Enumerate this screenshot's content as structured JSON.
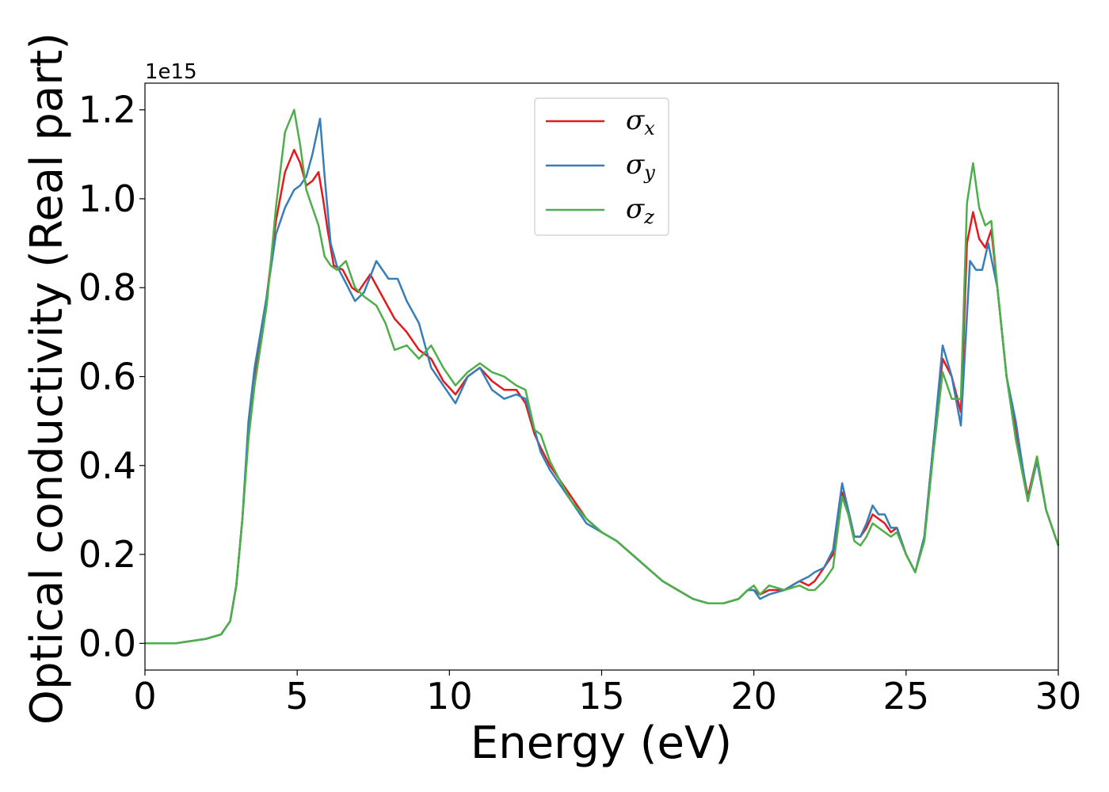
{
  "chart_data": {
    "type": "line",
    "xlabel": "Energy (eV)",
    "ylabel": "Optical conductivity (Real part)",
    "y_offset_text": "1e15",
    "xlim": [
      0,
      30
    ],
    "ylim": [
      -0.06,
      1.26
    ],
    "x_ticks": [
      0,
      5,
      10,
      15,
      20,
      25,
      30
    ],
    "x_tick_labels": [
      "0",
      "5",
      "10",
      "15",
      "20",
      "25",
      "30"
    ],
    "y_ticks": [
      0.0,
      0.2,
      0.4,
      0.6,
      0.8,
      1.0,
      1.2
    ],
    "y_tick_labels": [
      "0.0",
      "0.2",
      "0.4",
      "0.6",
      "0.8",
      "1.0",
      "1.2"
    ],
    "grid": false,
    "legend_position": "top-center",
    "series": [
      {
        "name": "σ",
        "subscript": "x",
        "color": "#e41a1c",
        "x": [
          0,
          1,
          2,
          2.5,
          2.8,
          3.0,
          3.2,
          3.4,
          3.6,
          4.0,
          4.3,
          4.6,
          4.9,
          5.1,
          5.3,
          5.5,
          5.7,
          5.85,
          6.0,
          6.2,
          6.5,
          6.8,
          7.0,
          7.4,
          7.8,
          8.2,
          8.6,
          9.0,
          9.4,
          9.8,
          10.2,
          10.6,
          11.0,
          11.4,
          11.8,
          12.2,
          12.5,
          12.8,
          13.0,
          13.3,
          13.6,
          14.0,
          14.5,
          15.0,
          15.5,
          16.0,
          16.5,
          17.0,
          17.5,
          18.0,
          18.5,
          19.0,
          19.5,
          19.8,
          20.0,
          20.2,
          20.5,
          21.0,
          21.5,
          21.8,
          22.0,
          22.3,
          22.6,
          22.9,
          23.1,
          23.3,
          23.5,
          23.7,
          23.9,
          24.1,
          24.3,
          24.5,
          24.7,
          25.0,
          25.3,
          25.6,
          25.9,
          26.2,
          26.5,
          26.8,
          27.0,
          27.2,
          27.4,
          27.6,
          27.8,
          28.0,
          28.3,
          28.6,
          29.0,
          29.3,
          29.6,
          30.0
        ],
        "y": [
          0.0,
          0.0,
          0.01,
          0.02,
          0.05,
          0.13,
          0.28,
          0.48,
          0.6,
          0.78,
          0.95,
          1.06,
          1.11,
          1.08,
          1.03,
          1.04,
          1.06,
          1.0,
          0.93,
          0.85,
          0.84,
          0.8,
          0.79,
          0.83,
          0.78,
          0.73,
          0.7,
          0.66,
          0.64,
          0.59,
          0.56,
          0.6,
          0.62,
          0.59,
          0.57,
          0.57,
          0.54,
          0.47,
          0.44,
          0.4,
          0.37,
          0.33,
          0.28,
          0.25,
          0.23,
          0.2,
          0.17,
          0.14,
          0.12,
          0.1,
          0.09,
          0.09,
          0.1,
          0.12,
          0.12,
          0.11,
          0.12,
          0.12,
          0.14,
          0.13,
          0.14,
          0.17,
          0.2,
          0.34,
          0.3,
          0.24,
          0.24,
          0.26,
          0.29,
          0.28,
          0.27,
          0.25,
          0.26,
          0.2,
          0.16,
          0.24,
          0.45,
          0.64,
          0.6,
          0.52,
          0.9,
          0.97,
          0.91,
          0.89,
          0.93,
          0.8,
          0.6,
          0.48,
          0.33,
          0.42,
          0.3,
          0.22
        ]
      },
      {
        "name": "σ",
        "subscript": "y",
        "color": "#377eb8",
        "x": [
          0,
          1,
          2,
          2.5,
          2.8,
          3.0,
          3.2,
          3.4,
          3.6,
          4.0,
          4.3,
          4.6,
          4.9,
          5.1,
          5.3,
          5.5,
          5.75,
          5.9,
          6.1,
          6.3,
          6.6,
          6.9,
          7.2,
          7.6,
          8.0,
          8.3,
          8.6,
          9.0,
          9.4,
          9.8,
          10.2,
          10.6,
          11.0,
          11.4,
          11.8,
          12.2,
          12.5,
          12.8,
          13.0,
          13.3,
          13.6,
          14.0,
          14.5,
          15.0,
          15.5,
          16.0,
          16.5,
          17.0,
          17.5,
          18.0,
          18.5,
          19.0,
          19.5,
          19.8,
          20.0,
          20.2,
          20.5,
          21.0,
          21.5,
          21.8,
          22.0,
          22.3,
          22.6,
          22.9,
          23.1,
          23.3,
          23.5,
          23.7,
          23.9,
          24.1,
          24.3,
          24.5,
          24.7,
          25.0,
          25.3,
          25.6,
          25.9,
          26.2,
          26.5,
          26.8,
          27.1,
          27.3,
          27.5,
          27.7,
          28.0,
          28.3,
          28.6,
          29.0,
          29.3,
          29.6,
          30.0
        ],
        "y": [
          0.0,
          0.0,
          0.01,
          0.02,
          0.05,
          0.13,
          0.28,
          0.5,
          0.62,
          0.78,
          0.92,
          0.98,
          1.02,
          1.03,
          1.05,
          1.1,
          1.18,
          1.05,
          0.9,
          0.85,
          0.81,
          0.77,
          0.79,
          0.86,
          0.82,
          0.82,
          0.77,
          0.72,
          0.62,
          0.58,
          0.54,
          0.6,
          0.62,
          0.57,
          0.55,
          0.56,
          0.55,
          0.48,
          0.43,
          0.39,
          0.36,
          0.32,
          0.27,
          0.25,
          0.23,
          0.2,
          0.17,
          0.14,
          0.12,
          0.1,
          0.09,
          0.09,
          0.1,
          0.12,
          0.12,
          0.1,
          0.11,
          0.12,
          0.14,
          0.15,
          0.16,
          0.17,
          0.21,
          0.36,
          0.3,
          0.24,
          0.24,
          0.27,
          0.31,
          0.29,
          0.29,
          0.26,
          0.26,
          0.2,
          0.16,
          0.24,
          0.45,
          0.67,
          0.6,
          0.49,
          0.86,
          0.84,
          0.84,
          0.9,
          0.8,
          0.6,
          0.5,
          0.32,
          0.41,
          0.3,
          0.22
        ]
      },
      {
        "name": "σ",
        "subscript": "z",
        "color": "#4daf4a",
        "x": [
          0,
          1,
          2,
          2.5,
          2.8,
          3.0,
          3.2,
          3.4,
          3.6,
          4.0,
          4.3,
          4.6,
          4.9,
          5.1,
          5.3,
          5.5,
          5.7,
          5.9,
          6.1,
          6.3,
          6.6,
          6.9,
          7.2,
          7.6,
          7.9,
          8.2,
          8.6,
          9.0,
          9.4,
          9.8,
          10.2,
          10.6,
          11.0,
          11.4,
          11.8,
          12.2,
          12.5,
          12.8,
          13.0,
          13.3,
          13.6,
          14.0,
          14.5,
          15.0,
          15.5,
          16.0,
          16.5,
          17.0,
          17.5,
          18.0,
          18.5,
          19.0,
          19.5,
          19.8,
          20.0,
          20.2,
          20.5,
          21.0,
          21.5,
          21.8,
          22.0,
          22.3,
          22.6,
          22.9,
          23.1,
          23.3,
          23.5,
          23.7,
          23.9,
          24.1,
          24.3,
          24.5,
          24.7,
          25.0,
          25.3,
          25.6,
          25.9,
          26.2,
          26.5,
          26.8,
          27.0,
          27.2,
          27.4,
          27.6,
          27.8,
          28.0,
          28.3,
          28.6,
          29.0,
          29.3,
          29.6,
          30.0
        ],
        "y": [
          0.0,
          0.0,
          0.01,
          0.02,
          0.05,
          0.13,
          0.28,
          0.46,
          0.58,
          0.76,
          0.98,
          1.15,
          1.2,
          1.12,
          1.02,
          0.98,
          0.94,
          0.87,
          0.85,
          0.84,
          0.86,
          0.8,
          0.78,
          0.76,
          0.72,
          0.66,
          0.67,
          0.64,
          0.67,
          0.62,
          0.58,
          0.61,
          0.63,
          0.61,
          0.6,
          0.58,
          0.57,
          0.48,
          0.47,
          0.41,
          0.37,
          0.32,
          0.28,
          0.25,
          0.23,
          0.2,
          0.17,
          0.14,
          0.12,
          0.1,
          0.09,
          0.09,
          0.1,
          0.12,
          0.13,
          0.11,
          0.13,
          0.12,
          0.13,
          0.12,
          0.12,
          0.14,
          0.17,
          0.33,
          0.29,
          0.23,
          0.22,
          0.24,
          0.27,
          0.26,
          0.25,
          0.24,
          0.25,
          0.2,
          0.16,
          0.23,
          0.43,
          0.61,
          0.55,
          0.55,
          0.99,
          1.08,
          0.98,
          0.94,
          0.95,
          0.8,
          0.6,
          0.46,
          0.32,
          0.42,
          0.3,
          0.22
        ]
      }
    ]
  }
}
